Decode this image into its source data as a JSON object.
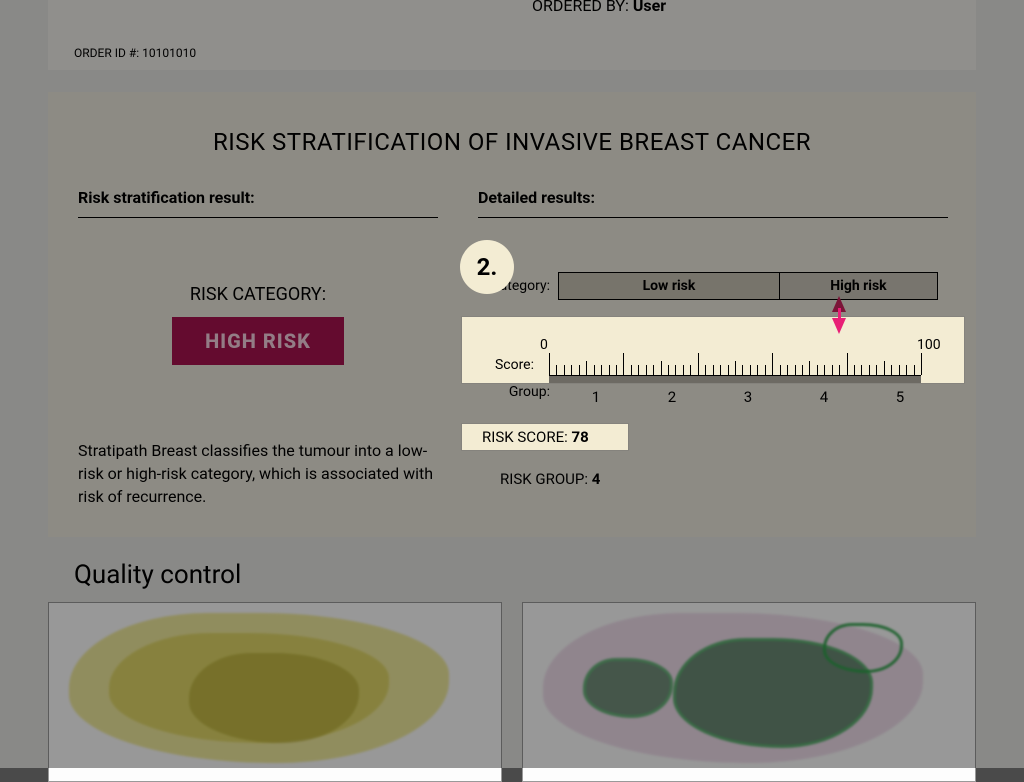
{
  "header": {
    "ordered_by_label": "ORDERED BY:",
    "ordered_by_value": "User",
    "order_id_label": "ORDER ID #:",
    "order_id_value": "10101010"
  },
  "step": {
    "label": "2."
  },
  "main": {
    "title": "RISK STRATIFICATION OF INVASIVE BREAST CANCER",
    "left_heading": "Risk stratification result:",
    "right_heading": "Detailed results:",
    "risk_category_label": "RISK CATEGORY:",
    "risk_category_value": "HIGH RISK",
    "description": "Stratipath Breast classifies the tumour into a low-risk or high-risk category, which is associated with risk of recurrence.",
    "category_row_label": "Category:",
    "category_low": "Low risk",
    "category_high": "High risk",
    "score_row_label": "Score:",
    "group_row_label": "Group:",
    "scale": {
      "min_label": "0",
      "max_label": "100",
      "min": 0,
      "max": 100,
      "group_count": 5,
      "groups": [
        "1",
        "2",
        "3",
        "4",
        "5"
      ],
      "minor_ticks_per_group": 10
    },
    "risk_score_label": "RISK SCORE:",
    "risk_score_value": "78",
    "risk_group_label": "RISK GROUP:",
    "risk_group_value": "4",
    "pointer_position_pct": 78
  },
  "qc": {
    "title": "Quality control"
  },
  "colors": {
    "page_bg": "#e5e4e1",
    "panel_bg": "#ece8dd",
    "highlight_bg": "#f3ecd3",
    "badge_bg": "#a7134f",
    "badge_text": "#f6d1df",
    "arrow_dark": "#7b1438",
    "arrow_pink": "#e81f76",
    "group_bar": "#6d6a63",
    "overlay": "rgba(0,0,0,0.40)"
  }
}
